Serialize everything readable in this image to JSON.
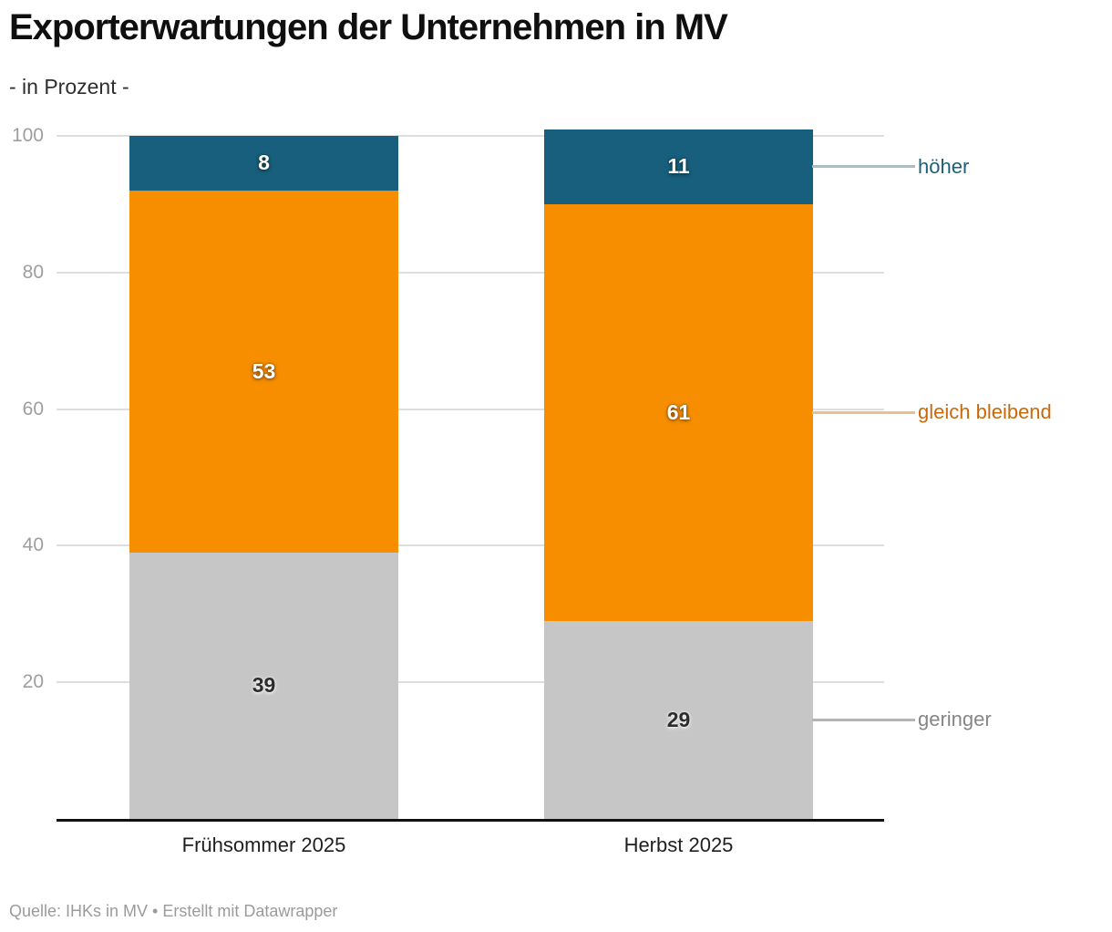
{
  "header": {
    "title": "Exporterwartungen der Unternehmen in MV",
    "subtitle": "- in Prozent -"
  },
  "footer": {
    "source": "Quelle: IHKs in MV • Erstellt mit Datawrapper"
  },
  "colors": {
    "background": "#ffffff",
    "gridline": "#dedede",
    "axis_line": "#111111",
    "tick_label": "#9e9e9e",
    "category_label": "#1f1f1f",
    "source_text": "#9b9b9b"
  },
  "chart_data": {
    "type": "bar",
    "stacked": true,
    "title": "Exporterwartungen der Unternehmen in MV",
    "subtitle": "- in Prozent -",
    "xlabel": "",
    "ylabel": "",
    "ylim": [
      0,
      100
    ],
    "yticks": [
      20,
      40,
      60,
      80,
      100
    ],
    "grid": true,
    "legend_position": "right-direct-labels",
    "categories": [
      "Frühsommer 2025",
      "Herbst 2025"
    ],
    "series": [
      {
        "name": "höher",
        "values": [
          8,
          11
        ],
        "color": "#175f7c",
        "label_style": "light",
        "legend_text_color": "#1c607b",
        "connector_color": "#a3bfcc"
      },
      {
        "name": "gleich bleibend",
        "values": [
          53,
          61
        ],
        "color": "#f78e00",
        "label_style": "light",
        "legend_text_color": "#c9690b",
        "connector_color": "#edbe8d"
      },
      {
        "name": "geringer",
        "values": [
          39,
          29
        ],
        "color": "#c6c6c6",
        "label_style": "dark",
        "legend_text_color": "#868686",
        "connector_color": "#b5b5b5"
      }
    ]
  }
}
